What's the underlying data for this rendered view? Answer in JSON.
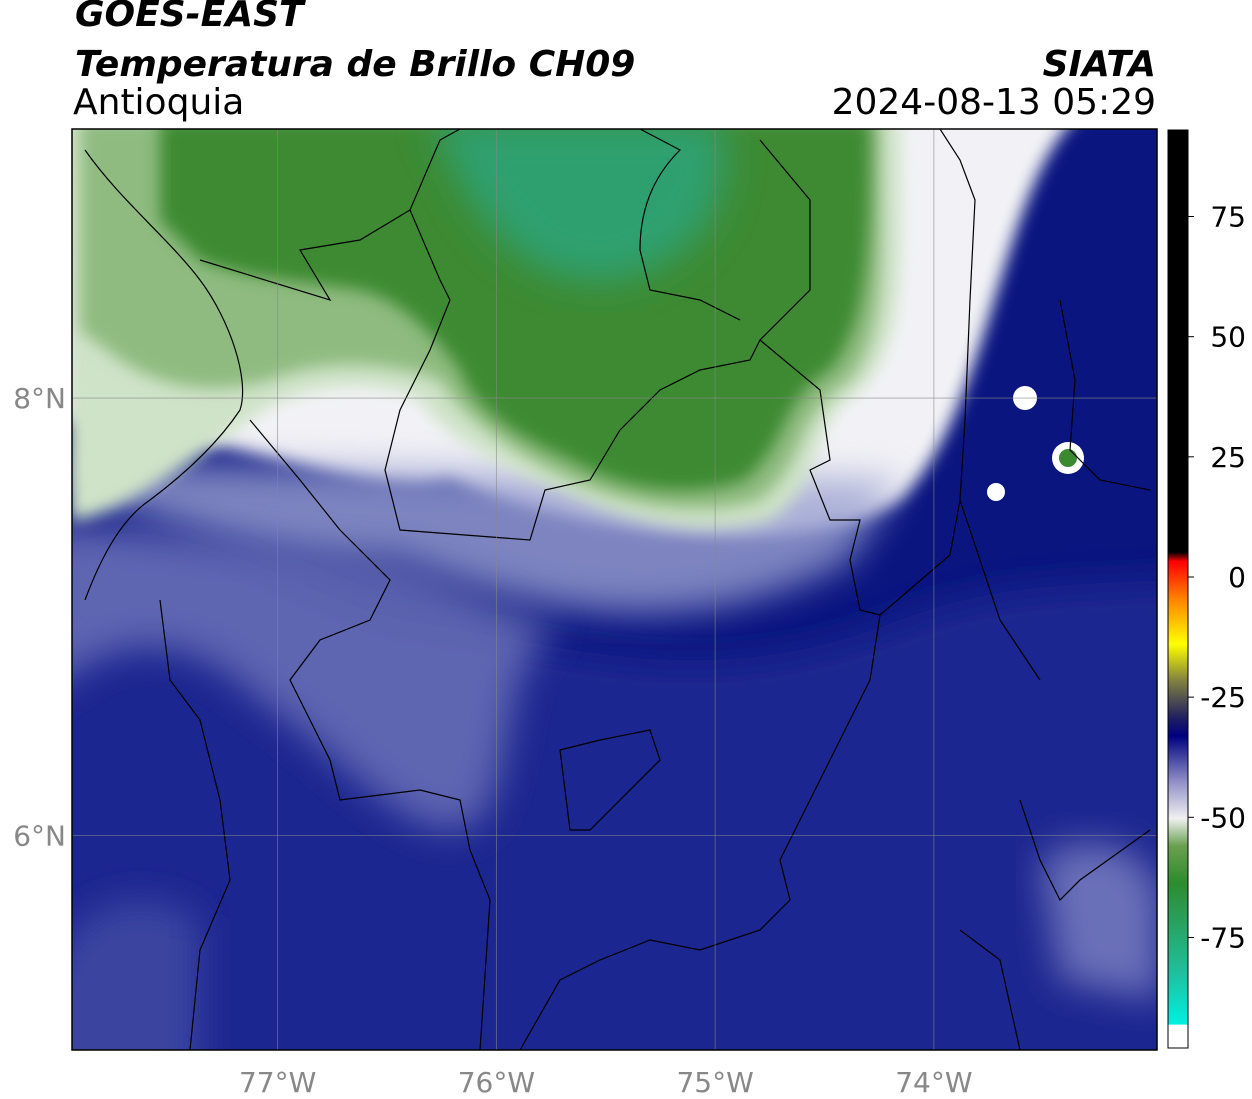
{
  "header": {
    "line1": "GOES-EAST",
    "line2": "Temperatura de Brillo CH09",
    "line3": "Antioquia",
    "org": "SIATA",
    "datetime": "2024-08-13 05:29"
  },
  "map": {
    "lon_range": [
      -77.94,
      -72.98
    ],
    "lat_range": [
      5.02,
      9.23
    ],
    "lon_ticks": [
      {
        "value": -77,
        "label": "77°W"
      },
      {
        "value": -76,
        "label": "76°W"
      },
      {
        "value": -75,
        "label": "75°W"
      },
      {
        "value": -74,
        "label": "74°W"
      }
    ],
    "lat_ticks": [
      {
        "value": 8,
        "label": "8°N"
      },
      {
        "value": 6,
        "label": "6°N"
      }
    ]
  },
  "colorbar": {
    "range": [
      -98,
      93
    ],
    "ticks": [
      75,
      50,
      25,
      0,
      -25,
      -50,
      -75
    ]
  }
}
